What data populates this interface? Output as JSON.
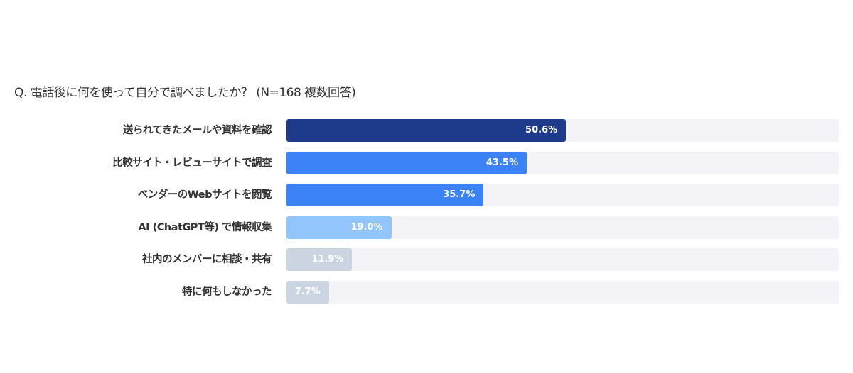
{
  "chart_data": {
    "type": "bar",
    "orientation": "horizontal",
    "title": "Q. 電話後に何を使って自分で調べましたか？ (N=168 複数回答)",
    "xlim": [
      0,
      100
    ],
    "grid": false,
    "categories": [
      "送られてきたメールや資料を確認",
      "比較サイト・レビューサイトで調査",
      "ベンダーのWebサイトを閲覧",
      "AI (ChatGPT等) で情報収集",
      "社内のメンバーに相談・共有",
      "特に何もしなかった"
    ],
    "values": [
      50.6,
      43.5,
      35.7,
      19.0,
      11.9,
      7.7
    ],
    "value_labels": [
      "50.6%",
      "43.5%",
      "35.7%",
      "19.0%",
      "11.9%",
      "7.7%"
    ],
    "colors": [
      "#1e3a8a",
      "#3b82f6",
      "#3b82f6",
      "#93c5fd",
      "#cbd5e1",
      "#cbd5e1"
    ],
    "track_color": "#f3f3f8"
  }
}
